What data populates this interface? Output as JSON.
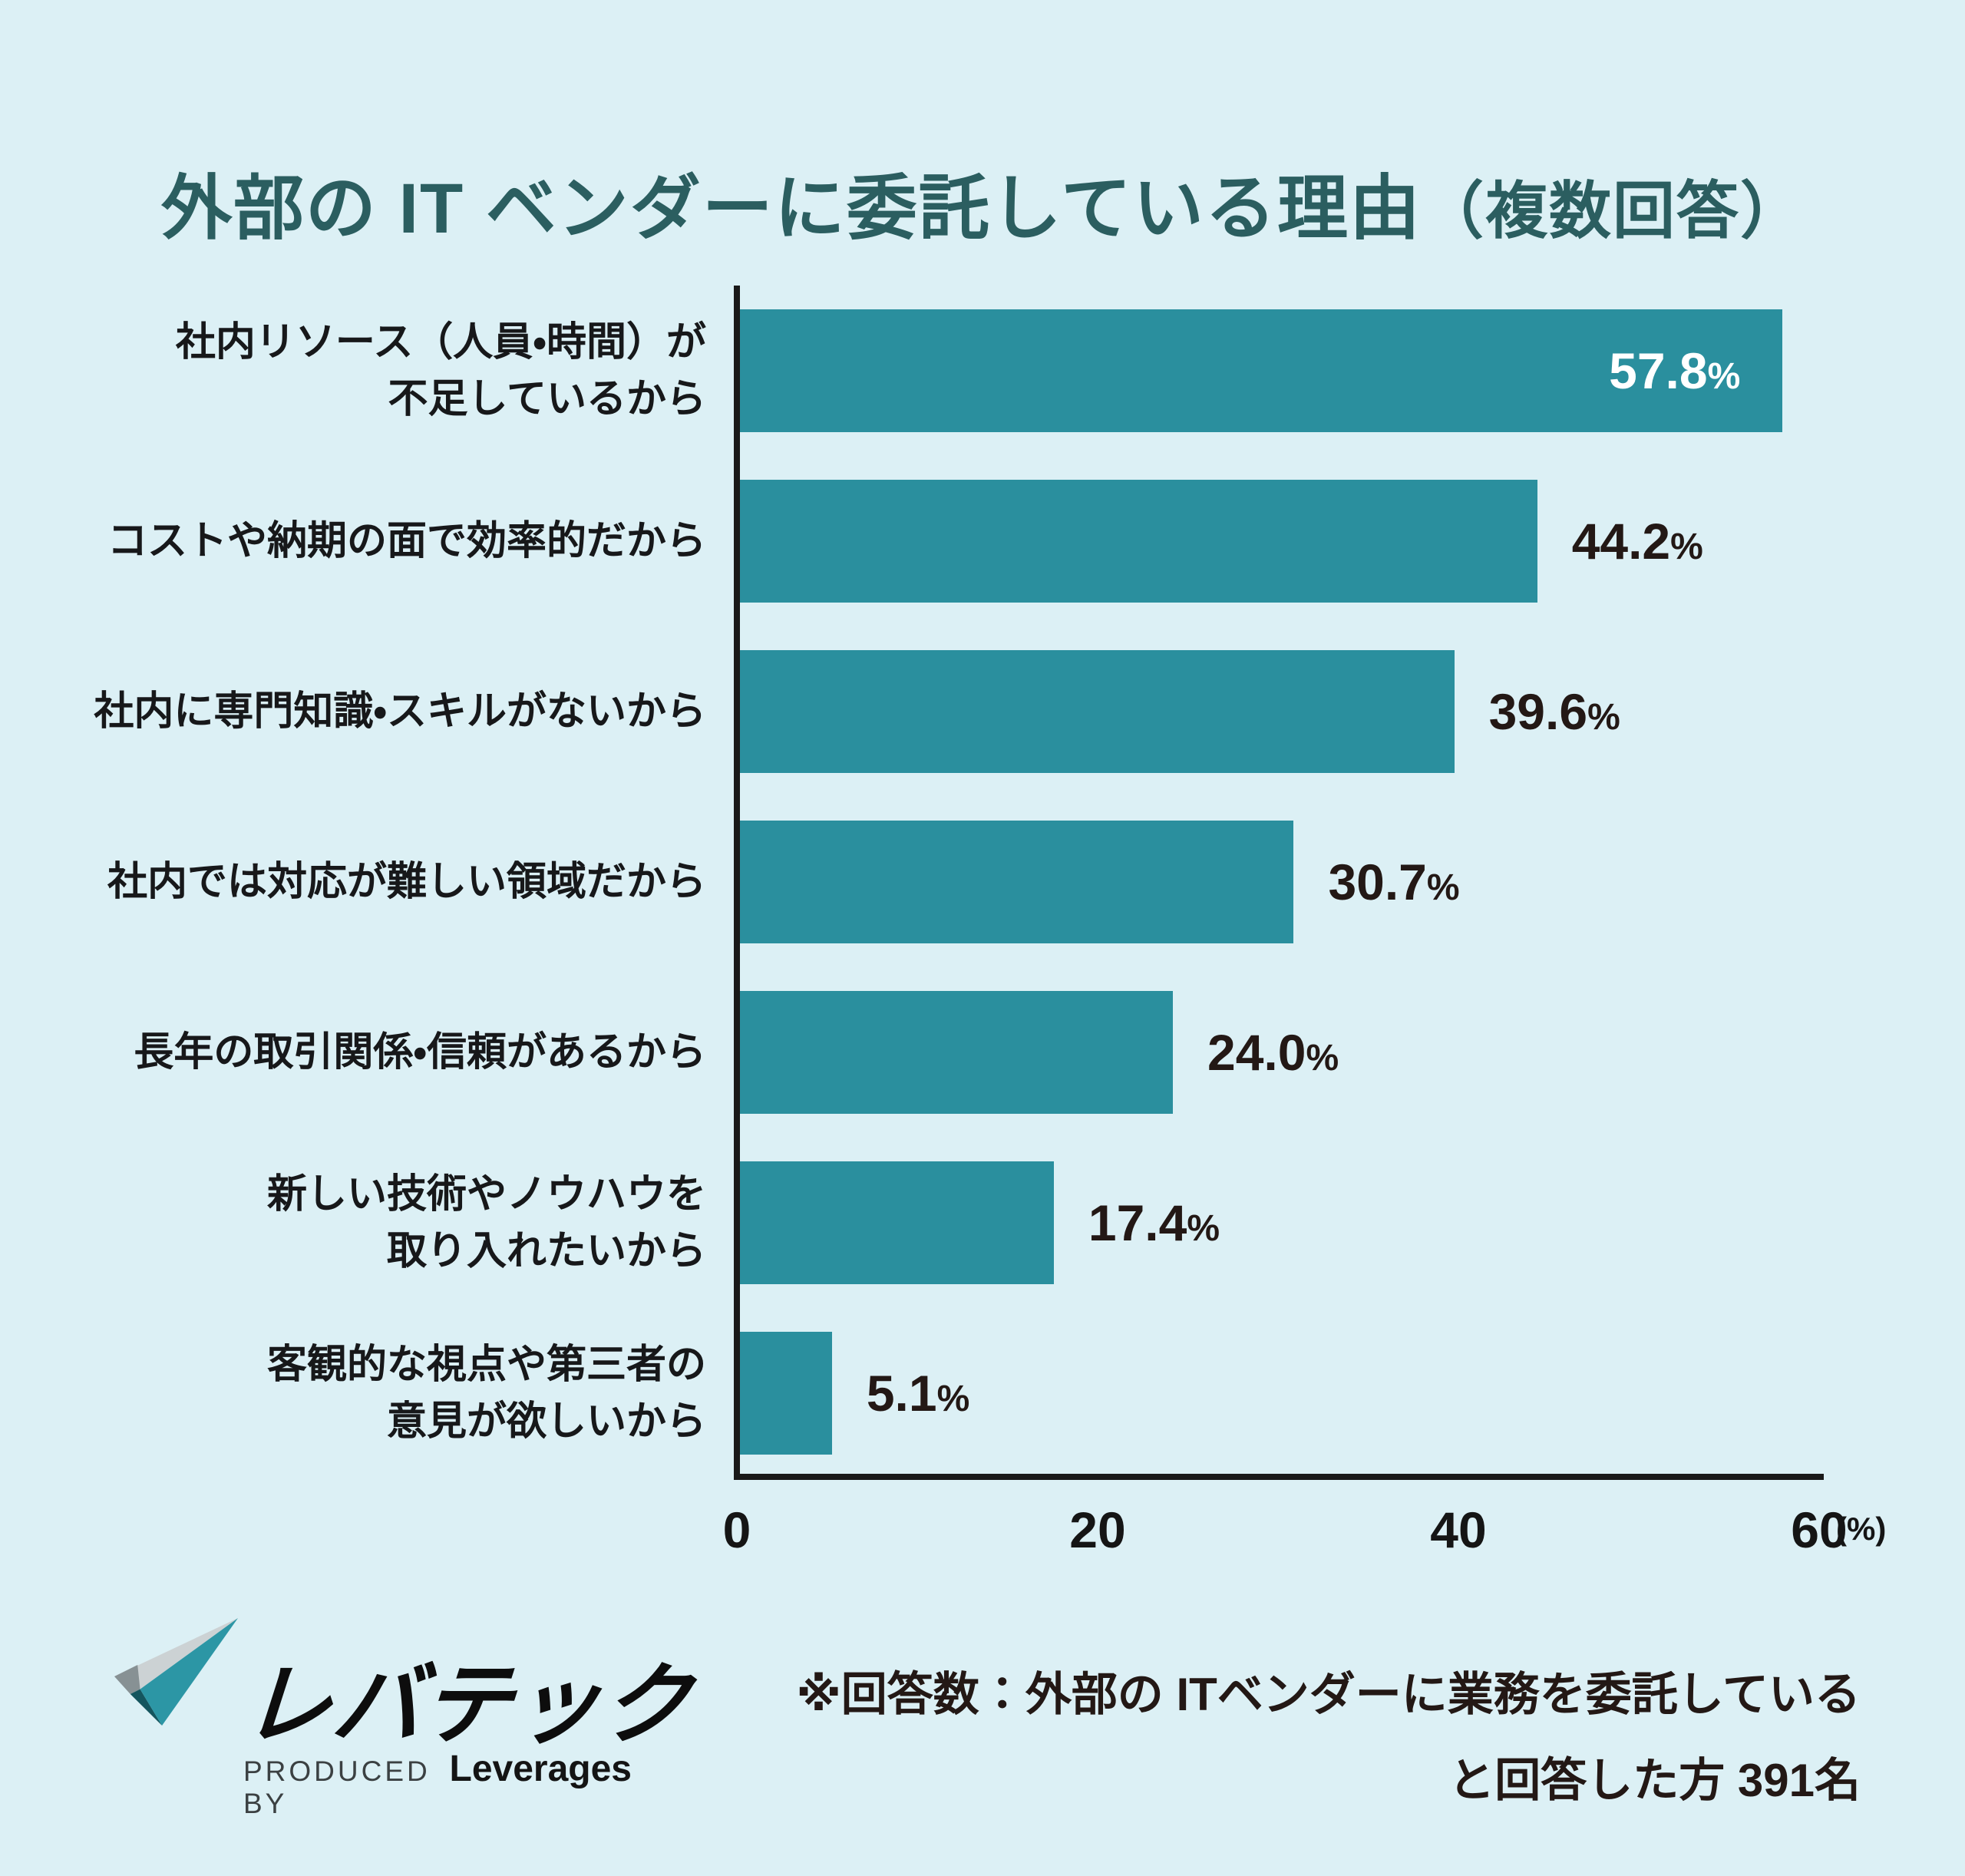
{
  "chart_data": {
    "type": "bar",
    "orientation": "horizontal",
    "title": "外部の IT ベンダーに委託している理由（複数回答）",
    "categories": [
      "社内リソース（人員・時間）が\n不足しているから",
      "コストや納期の面で効率的だから",
      "社内に専門知識・スキルがないから",
      "社内では対応が難しい領域だから",
      "長年の取引関係・信頼があるから",
      "新しい技術やノウハウを\n取り入れたいから",
      "客観的な視点や第三者の\n意見が欲しいから"
    ],
    "values": [
      57.8,
      44.2,
      39.6,
      30.7,
      24.0,
      17.4,
      5.1
    ],
    "value_labels": [
      "57.8%",
      "44.2%",
      "39.6%",
      "30.7%",
      "24.0%",
      "17.4%",
      "5.1%"
    ],
    "xlabel": "",
    "ylabel": "",
    "xlim": [
      0,
      60
    ],
    "x_ticks": [
      0,
      20,
      40,
      60
    ],
    "x_tick_labels": [
      "0",
      "20",
      "40",
      "60"
    ],
    "axis_unit": "(%)",
    "grid": false,
    "legend": false,
    "bar_color": "#2A8F9E",
    "value_color_inside": "#FFFFFF",
    "value_color_outside": "#231815"
  },
  "header": {
    "title_main": "外部の IT ベンダーに委託している理由",
    "title_paren": "（複数回答）"
  },
  "footnote": {
    "line1": "※回答数：外部の ITベンダーに業務を委託している",
    "line2": "と回答した方 391名"
  },
  "logo": {
    "brand": "レバテック",
    "produced_by": "PRODUCED BY",
    "company": "Leverages"
  },
  "colors": {
    "background": "#DCF0F5",
    "title": "#2B5E60",
    "bar": "#2A8F9E",
    "axis": "#191919",
    "text": "#231815"
  }
}
